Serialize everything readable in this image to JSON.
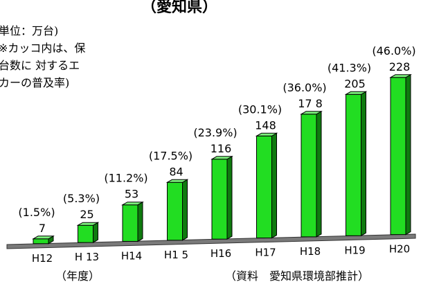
{
  "chart_data": {
    "type": "bar",
    "title": "（愛知県）",
    "unit_note": "単位：万台)\n※カッコ内は、保\n台数に 対するエ\nカーの普及率)",
    "xlabel": "（年度）",
    "source": "（資料　愛知県環境部推計）",
    "categories": [
      "H12",
      "H 13",
      "H14",
      "H1 5",
      "H16",
      "H17",
      "H18",
      "H19",
      "H20"
    ],
    "values": [
      7,
      25,
      53,
      84,
      116,
      148,
      178,
      205,
      228
    ],
    "value_labels": [
      "7",
      "25",
      "53",
      "84",
      "116",
      "148",
      "17 8",
      "205",
      "228"
    ],
    "percent_labels": [
      "(1.5%)",
      "(5.3%)",
      "(11.2%)",
      "(17.5%)",
      "(23.9%)",
      "(30.1%)",
      "(36.0%)",
      "(41.3%)",
      "(46.0%)"
    ],
    "ylim": [
      0,
      240
    ],
    "grid": false,
    "colors": {
      "bar_front": "#22dd22",
      "bar_side": "#0f7a0f",
      "bar_top": "#7cf07c",
      "floor": "#7a7a7a"
    }
  }
}
